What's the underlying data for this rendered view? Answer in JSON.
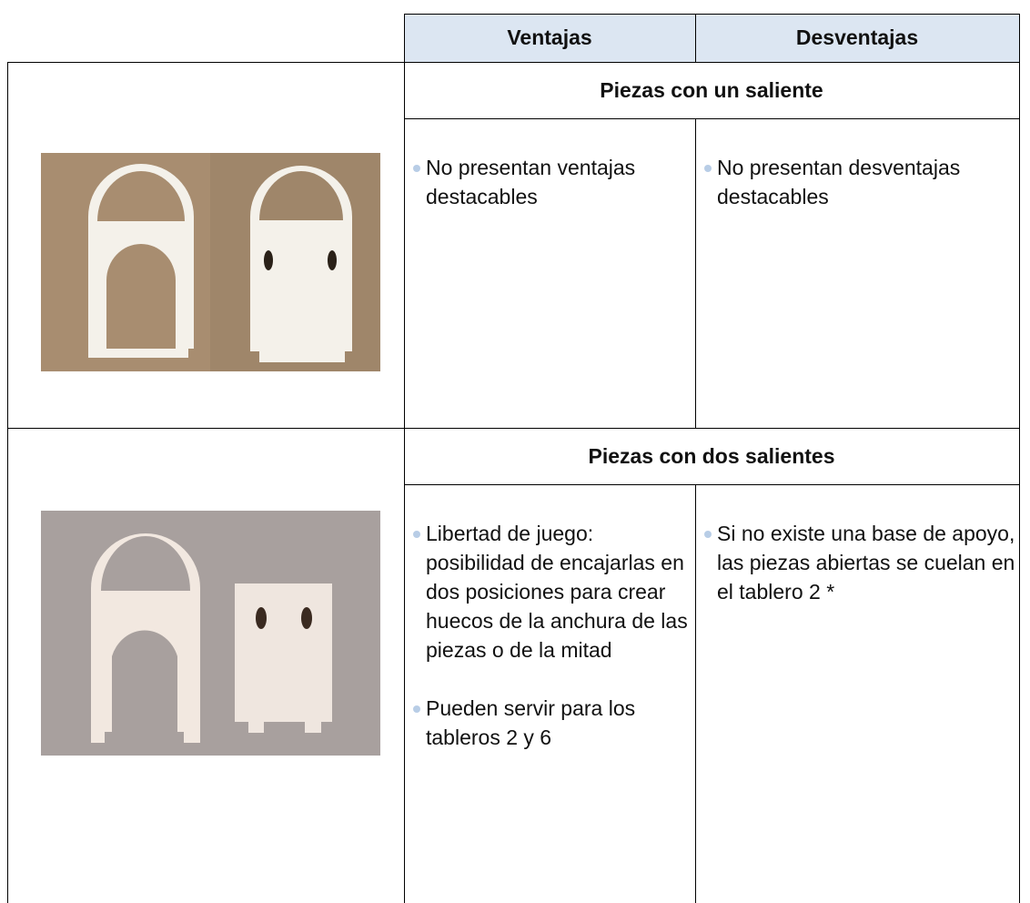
{
  "header": {
    "columns": [
      "Ventajas",
      "Desventajas"
    ]
  },
  "sections": [
    {
      "title": "Piezas con un saliente",
      "ventajas": [
        "No presentan ventajas destacables"
      ],
      "desventajas": [
        "No presentan desventajas destacables"
      ]
    },
    {
      "title": "Piezas con dos salientes",
      "ventajas": [
        "Libertad de juego: posibilidad de encajarlas en dos posiciones para crear huecos de la anchura de las piezas o de la mitad",
        "Pueden servir para los tableros 2 y 6"
      ],
      "desventajas": [
        "Si no existe una base de apoyo, las piezas abiertas se cuelan en el tablero 2 *"
      ]
    }
  ]
}
